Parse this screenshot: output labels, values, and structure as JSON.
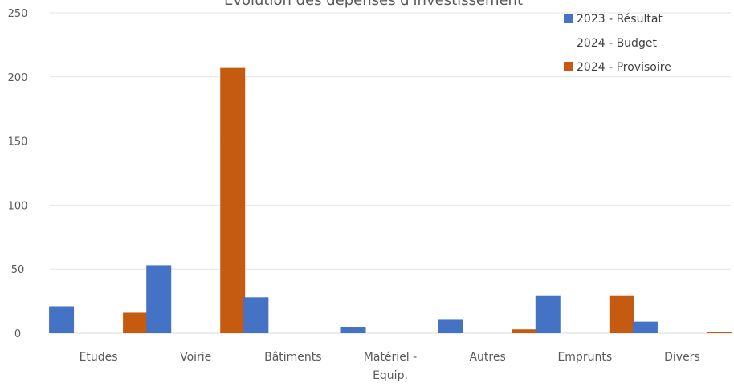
{
  "chart_data": {
    "type": "bar",
    "title": "Evolution des dépenses d'investissement",
    "categories": [
      [
        "Etudes"
      ],
      [
        "Voirie"
      ],
      [
        "Bâtiments"
      ],
      [
        "Matériel -",
        "Equip."
      ],
      [
        "Autres"
      ],
      [
        "Emprunts"
      ],
      [
        "Divers"
      ]
    ],
    "series": [
      {
        "name": "2023 - Résultat",
        "color": "#4472C4",
        "values": [
          21,
          53,
          28,
          5,
          11,
          29,
          9
        ]
      },
      {
        "name": "2024 - Budget",
        "color": "#A5A5A5",
        "values": [
          0,
          0,
          0,
          0,
          0,
          0,
          0
        ]
      },
      {
        "name": "2024 - Provisoire",
        "color": "#C55A11",
        "values": [
          16,
          207,
          0,
          0,
          3,
          29,
          1
        ]
      }
    ],
    "ylim": [
      0,
      250
    ],
    "yticks": [
      "0",
      "50",
      "100",
      "150",
      "200",
      "250"
    ],
    "grid": true,
    "legend_position": "top-right"
  }
}
